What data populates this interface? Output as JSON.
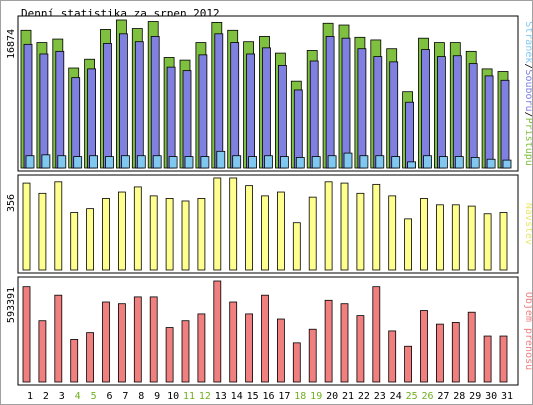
{
  "chart_data": {
    "type": "bar",
    "title": "Denní statistika za srpen 2012",
    "categories": [
      "1",
      "2",
      "3",
      "4",
      "5",
      "6",
      "7",
      "8",
      "9",
      "10",
      "11",
      "12",
      "13",
      "14",
      "15",
      "16",
      "17",
      "18",
      "19",
      "20",
      "21",
      "22",
      "23",
      "24",
      "25",
      "26",
      "27",
      "28",
      "29",
      "30",
      "31"
    ],
    "weekend_days": [
      "4",
      "5",
      "11",
      "12",
      "18",
      "19",
      "25",
      "26"
    ],
    "colors": {
      "hits": "#80c040",
      "files": "#8080e0",
      "pages": "#80c8f0",
      "visits": "#ffff90",
      "kbytes": "#f08080",
      "weekday_label": "#000000",
      "weekend_label": "#70b020"
    },
    "panels": [
      {
        "name": "traffic",
        "y_label": "16874",
        "y_max": 16874,
        "legend": [
          {
            "text": "Stránek",
            "color": "#80c8f0"
          },
          {
            "text": "/",
            "color": "#000000"
          },
          {
            "text": "Souborů",
            "color": "#8080e0"
          },
          {
            "text": "/",
            "color": "#000000"
          },
          {
            "text": "Přístupů",
            "color": "#80c040"
          }
        ],
        "series": [
          {
            "key": "hits",
            "values": [
              15700,
              14300,
              14700,
              11400,
              12400,
              15800,
              16874,
              15900,
              16700,
              12600,
              12300,
              14300,
              16600,
              15700,
              14400,
              15000,
              13100,
              9900,
              13400,
              16500,
              16300,
              14900,
              14600,
              13600,
              8700,
              14800,
              14300,
              14300,
              13300,
              11300,
              11000
            ]
          },
          {
            "key": "files",
            "values": [
              14100,
              13000,
              13300,
              10300,
              11300,
              14200,
              15300,
              14400,
              15000,
              11500,
              11100,
              12900,
              15300,
              14300,
              13000,
              13700,
              11700,
              8900,
              12200,
              15000,
              14800,
              13600,
              12700,
              12100,
              7500,
              13500,
              12700,
              12800,
              11900,
              10500,
              10000
            ]
          },
          {
            "key": "pages",
            "values": [
              1400,
              1500,
              1400,
              1300,
              1400,
              1300,
              1400,
              1400,
              1400,
              1300,
              1300,
              1300,
              1900,
              1400,
              1300,
              1400,
              1300,
              1200,
              1300,
              1400,
              1700,
              1400,
              1400,
              1300,
              700,
              1400,
              1300,
              1300,
              1200,
              1000,
              900
            ]
          }
        ]
      },
      {
        "name": "visits",
        "y_label": "356",
        "y_max": 356,
        "legend": [
          {
            "text": "Návštěv",
            "color": "#e8e870"
          }
        ],
        "series": [
          {
            "key": "visits",
            "values": [
              340,
              300,
              345,
              225,
              240,
              280,
              305,
              325,
              290,
              280,
              270,
              280,
              360,
              360,
              330,
              290,
              305,
              185,
              285,
              345,
              340,
              300,
              335,
              290,
              200,
              280,
              255,
              255,
              250,
              220,
              225
            ]
          }
        ]
      },
      {
        "name": "volume",
        "y_label": "593391",
        "y_max": 593391,
        "legend": [
          {
            "text": "Objem přenosu",
            "color": "#f08080"
          }
        ],
        "series": [
          {
            "key": "kbytes",
            "values": [
              560000,
              360000,
              510000,
              250000,
              290000,
              470000,
              460000,
              500000,
              500000,
              320000,
              360000,
              400000,
              593391,
              470000,
              400000,
              510000,
              370000,
              230000,
              310000,
              480000,
              460000,
              390000,
              560000,
              300000,
              210000,
              420000,
              340000,
              350000,
              410000,
              270000,
              270000
            ]
          }
        ]
      }
    ]
  }
}
